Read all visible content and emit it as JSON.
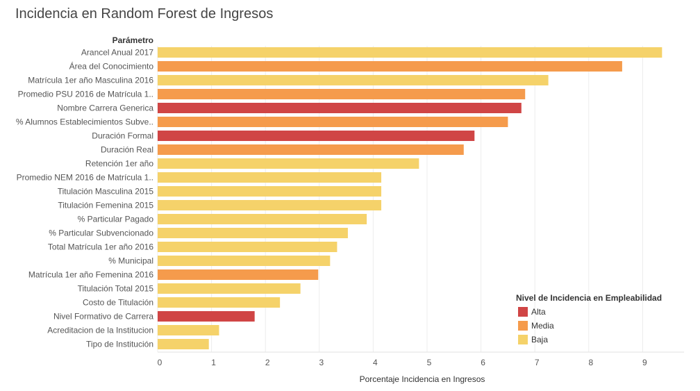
{
  "chart_data": {
    "type": "bar",
    "orientation": "horizontal",
    "title": "Incidencia en Random Forest de Ingresos",
    "category_header": "Parámetro",
    "xlabel": "Porcentaje Incidencia en Ingresos",
    "xlim": [
      0,
      9.5
    ],
    "xticks": [
      0,
      1,
      2,
      3,
      4,
      5,
      6,
      7,
      8,
      9
    ],
    "grid": true,
    "categories": [
      "Arancel Anual 2017",
      "Área del Conocimiento",
      "Matrícula 1er año Masculina 2016",
      "Promedio PSU 2016 de Matrícula 1..",
      "Nombre Carrera Generica",
      "% Alumnos Establecimientos Subve..",
      "Duración Formal",
      "Duración Real",
      "Retención 1er año",
      "Promedio NEM 2016 de Matrícula 1..",
      "Titulación Masculina 2015",
      "Titulación Femenina 2015",
      "% Particular Pagado",
      "% Particular Subvencionado",
      "Total Matrícula 1er año 2016",
      "% Municipal",
      "Matrícula 1er año Femenina 2016",
      "Titulación Total 2015",
      "Costo de Titulación",
      "Nivel Formativo de Carrera",
      "Acreditacion de la Institucion",
      "Tipo de Institución"
    ],
    "values": [
      9.36,
      8.62,
      7.25,
      6.82,
      6.75,
      6.5,
      5.88,
      5.68,
      4.85,
      4.15,
      4.15,
      4.15,
      3.88,
      3.53,
      3.33,
      3.2,
      2.98,
      2.65,
      2.27,
      1.8,
      1.14,
      0.95
    ],
    "levels": [
      "Baja",
      "Media",
      "Baja",
      "Media",
      "Alta",
      "Media",
      "Alta",
      "Media",
      "Baja",
      "Baja",
      "Baja",
      "Baja",
      "Baja",
      "Baja",
      "Baja",
      "Baja",
      "Media",
      "Baja",
      "Baja",
      "Alta",
      "Baja",
      "Baja"
    ],
    "legend": {
      "title": "Nivel de Incidencia en Empleabilidad",
      "position": "bottom-right",
      "entries": [
        {
          "label": "Alta",
          "color": "#d04545"
        },
        {
          "label": "Media",
          "color": "#f59b4c"
        },
        {
          "label": "Baja",
          "color": "#f5d26a"
        }
      ]
    }
  }
}
